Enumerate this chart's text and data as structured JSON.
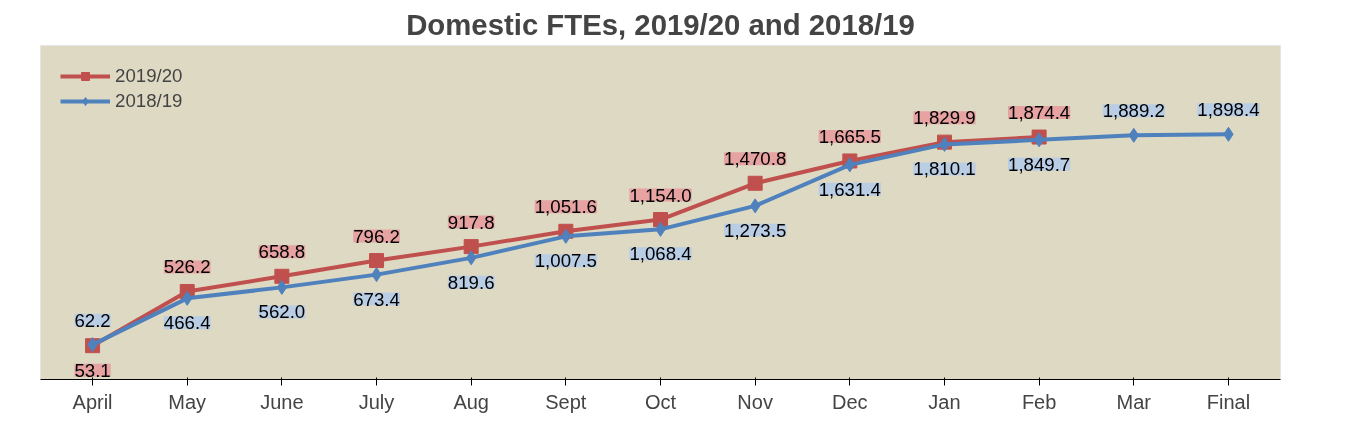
{
  "chart_data": {
    "type": "line",
    "title": "Domestic FTEs, 2019/20 and 2018/19",
    "categories": [
      "April",
      "May",
      "June",
      "July",
      "Aug",
      "Sept",
      "Oct",
      "Nov",
      "Dec",
      "Jan",
      "Feb",
      "Mar",
      "Final"
    ],
    "series": [
      {
        "name": "2019/20",
        "color": "#c0504d",
        "marker": "square",
        "values": [
          53.1,
          526.2,
          658.8,
          796.2,
          917.8,
          1051.6,
          1154.0,
          1470.8,
          1665.5,
          1829.9,
          1874.4,
          null,
          null
        ],
        "value_labels": [
          "53.1",
          "526.2",
          "658.8",
          "796.2",
          "917.8",
          "1,051.6",
          "1,154.0",
          "1,470.8",
          "1,665.5",
          "1,829.9",
          "1,874.4",
          null,
          null
        ]
      },
      {
        "name": "2018/19",
        "color": "#4f81bd",
        "marker": "diamond",
        "values": [
          62.2,
          466.4,
          562.0,
          673.4,
          819.6,
          1007.5,
          1068.4,
          1273.5,
          1631.4,
          1810.1,
          1849.7,
          1889.2,
          1898.4
        ],
        "value_labels": [
          "62.2",
          "466.4",
          "562.0",
          "673.4",
          "819.6",
          "1,007.5",
          "1,068.4",
          "1,273.5",
          "1,631.4",
          "1,810.1",
          "1,849.7",
          "1,889.2",
          "1,898.4"
        ]
      }
    ],
    "legend": "top left",
    "grid": false
  }
}
